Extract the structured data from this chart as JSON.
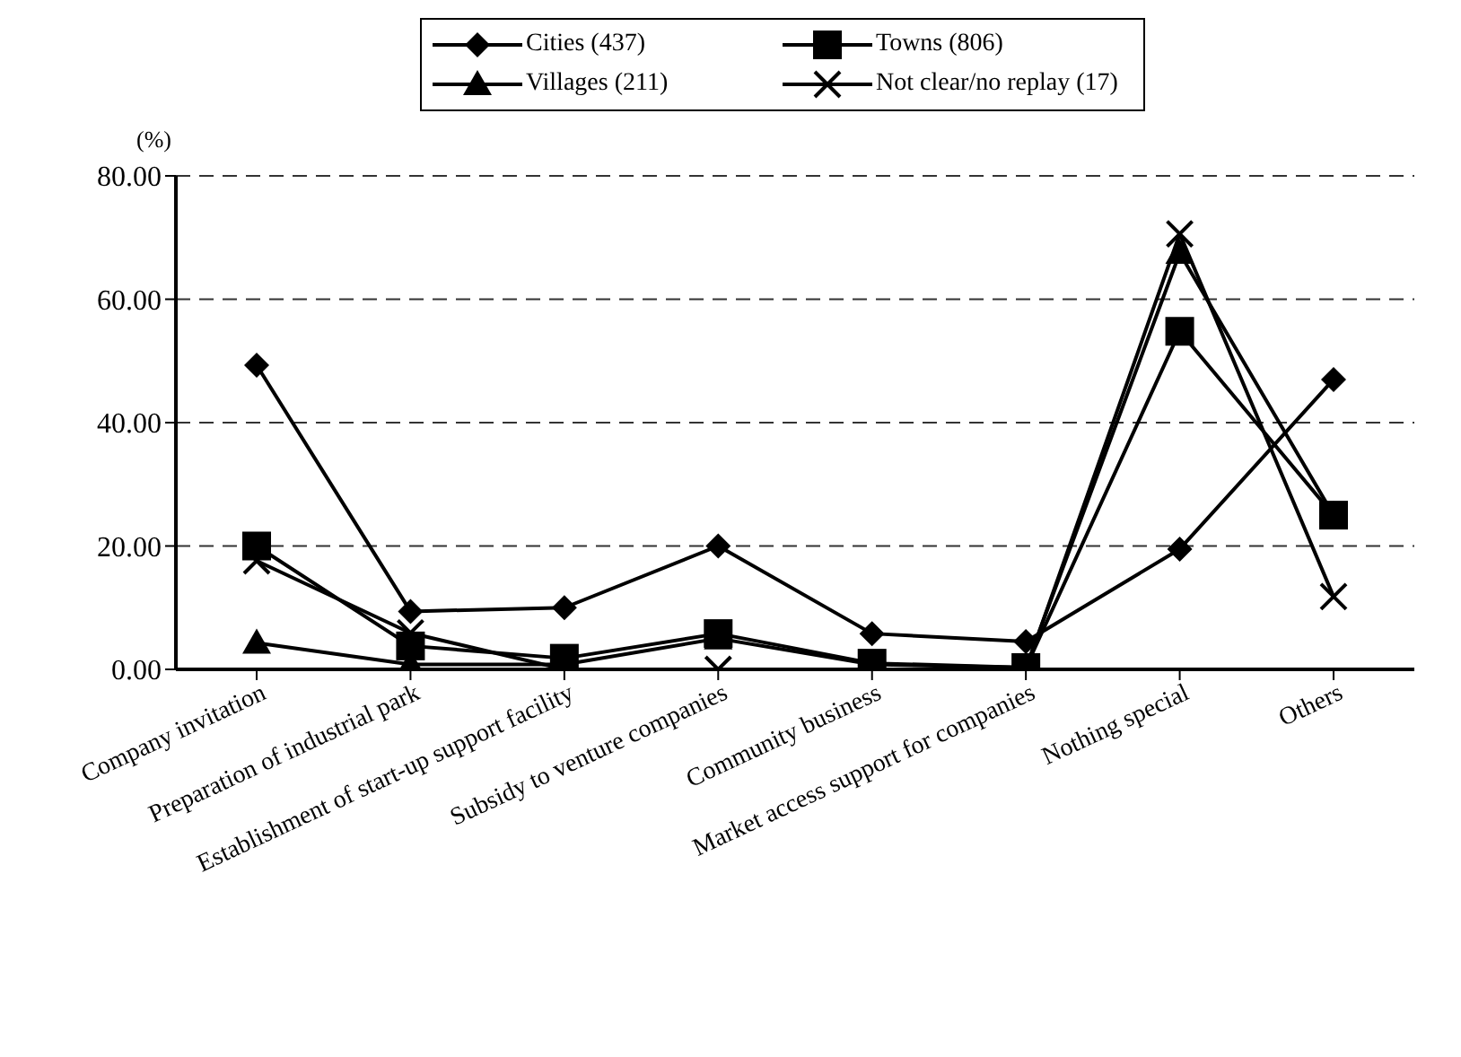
{
  "chart_data": {
    "type": "line",
    "ylabel": "(%)",
    "categories": [
      "Company invitation",
      "Preparation of industrial park",
      "Establishment of start-up  support facility",
      "Subsidy to venture companies",
      "Community business",
      "Market access support for companies",
      "Nothing special",
      "Others"
    ],
    "series": [
      {
        "name": "Cities (437)",
        "color": "#000000",
        "marker": "diamond",
        "values": [
          49.3,
          9.4,
          10.0,
          20.0,
          5.8,
          4.5,
          19.5,
          47.0
        ]
      },
      {
        "name": "Towns (806)",
        "color": "#000000",
        "marker": "square",
        "values": [
          20.0,
          3.8,
          1.8,
          5.8,
          1.0,
          0.3,
          54.8,
          25.0
        ]
      },
      {
        "name": "Villages (211)",
        "color": "#000000",
        "marker": "triangle",
        "values": [
          4.3,
          0.8,
          0.8,
          5.0,
          0.8,
          0.3,
          67.5,
          25.0
        ]
      },
      {
        "name": "Not clear/no replay (17)",
        "color": "#000000",
        "marker": "cross",
        "values": [
          17.6,
          5.9,
          0.0,
          0.0,
          0.0,
          0.0,
          70.6,
          11.8
        ]
      }
    ],
    "ylim": [
      0,
      80
    ],
    "yticks": [
      {
        "value": 0,
        "label": "0.00"
      },
      {
        "value": 20,
        "label": "20.00"
      },
      {
        "value": 40,
        "label": "40.00"
      },
      {
        "value": 60,
        "label": "60.00"
      },
      {
        "value": 80,
        "label": "80.00"
      }
    ],
    "grid": "y",
    "legend": "top"
  }
}
